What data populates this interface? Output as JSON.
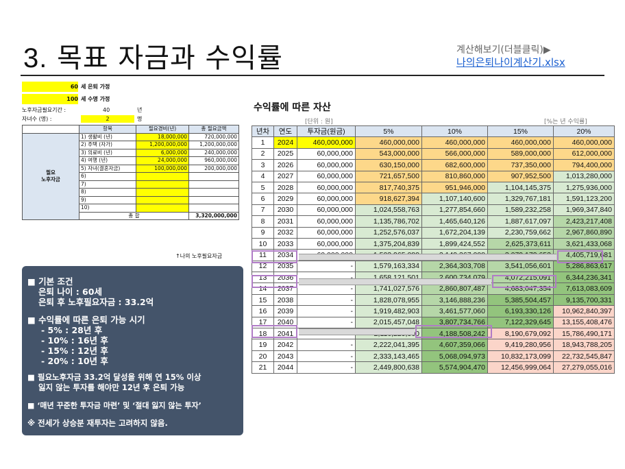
{
  "header": {
    "num": "3.",
    "title": "목표 자금과 수익률",
    "calc_label": "계산해보기(더블클릭)▶",
    "calc_link": "나의은퇴나이계산기.xlsx"
  },
  "assumptions": {
    "retire_age": "60",
    "retire_text": "세 은퇴 가정",
    "life_age": "100",
    "life_text": "세 수명 가정",
    "period_label": "노후자금필요기간 :",
    "period_val": "40",
    "period_unit": "년",
    "children_label": "자녀수 (명) :",
    "children_val": "2",
    "children_unit": "명"
  },
  "need_table": {
    "headers": [
      "항목",
      "필요경비(년)",
      "총 필요금액"
    ],
    "side_label": [
      "필요",
      "노후자금"
    ],
    "rows": [
      [
        "1) 생활비 (년)",
        "18,000,000",
        "720,000,000"
      ],
      [
        "2) 주택 (자가)",
        "1,200,000,000",
        "1,200,000,000"
      ],
      [
        "3) 의료비 (년)",
        "6,000,000",
        "240,000,000"
      ],
      [
        "4) 여행 (년)",
        "24,000,000",
        "960,000,000"
      ],
      [
        "5) 자녀(결혼자금)",
        "100,000,000",
        "200,000,000"
      ],
      [
        "6)",
        "",
        ""
      ],
      [
        "7)",
        "",
        ""
      ],
      [
        "8)",
        "",
        ""
      ],
      [
        "9)",
        "",
        ""
      ],
      [
        "10)",
        "",
        ""
      ]
    ],
    "total_label": "총 합",
    "total_val": "3,320,000,000",
    "footnote": "↑나의 노후필요자금"
  },
  "summary": {
    "lines": [
      "■ 기본 조건",
      "은퇴 나이 : 60세",
      "은퇴 후 노후필요자금 : 33.2억",
      "■ 수익률에 따른 은퇴 가능 시기",
      "-   5% : 28년 후",
      "- 10% : 16년 후",
      "- 15% : 12년 후",
      "- 20% : 10년 후",
      "■ 필요노후자금  33.2억 달성을 위해 연 15% 이상",
      "잃지 않는 투자를 해야만 12년 후 은퇴 가능",
      "■ ‘매년 꾸준한 투자금 마련’ 및 ‘절대 잃지 않는 투자’",
      "※ 전세가 상승분 재투자는 고려하지 않음."
    ]
  },
  "returns": {
    "title": "수익률에 따른 자산",
    "unit_left": "[단위 : 원]",
    "unit_right": "[%는 년 수익률]",
    "headers": [
      "년차",
      "연도",
      "투자금(원금)",
      "5%",
      "10%",
      "15%",
      "20%"
    ],
    "colors": {
      "orange": "#fdd88a",
      "light_green": "#d8ead2",
      "mid_green": "#b6d7a8",
      "green": "#93c47d",
      "peach": "#fbd5c9",
      "yellow": "#ffff00"
    },
    "rows": [
      [
        "1",
        "2024",
        "460,000,000",
        "460,000,000",
        "460,000,000",
        "460,000,000",
        "460,000,000"
      ],
      [
        "2",
        "2025",
        "60,000,000",
        "543,000,000",
        "566,000,000",
        "589,000,000",
        "612,000,000"
      ],
      [
        "3",
        "2026",
        "60,000,000",
        "630,150,000",
        "682,600,000",
        "737,350,000",
        "794,400,000"
      ],
      [
        "4",
        "2027",
        "60,000,000",
        "721,657,500",
        "810,860,000",
        "907,952,500",
        "1,013,280,000"
      ],
      [
        "5",
        "2028",
        "60,000,000",
        "817,740,375",
        "951,946,000",
        "1,104,145,375",
        "1,275,936,000"
      ],
      [
        "6",
        "2029",
        "60,000,000",
        "918,627,394",
        "1,107,140,600",
        "1,329,767,181",
        "1,591,123,200"
      ],
      [
        "7",
        "2030",
        "60,000,000",
        "1,024,558,763",
        "1,277,854,660",
        "1,589,232,258",
        "1,969,347,840"
      ],
      [
        "8",
        "2031",
        "60,000,000",
        "1,135,786,702",
        "1,465,640,126",
        "1,887,617,097",
        "2,423,217,408"
      ],
      [
        "9",
        "2032",
        "60,000,000",
        "1,252,576,037",
        "1,672,204,139",
        "2,230,759,662",
        "2,967,860,890"
      ],
      [
        "10",
        "2033",
        "60,000,000",
        "1,375,204,839",
        "1,899,424,552",
        "2,625,373,611",
        "3,621,433,068"
      ],
      [
        "11",
        "2034",
        "60,000,000",
        "1,503,965,080",
        "2,149,367,008",
        "3,079,179,653",
        "4,405,719,681"
      ],
      [
        "12",
        "2035",
        "-",
        "1,579,163,334",
        "2,364,303,708",
        "3,541,056,601",
        "5,286,863,617"
      ],
      [
        "13",
        "2036",
        "-",
        "1,658,121,501",
        "2,600,734,079",
        "4,072,215,091",
        "6,344,236,341"
      ],
      [
        "14",
        "2037",
        "-",
        "1,741,027,576",
        "2,860,807,487",
        "4,683,047,354",
        "7,613,083,609"
      ],
      [
        "15",
        "2038",
        "-",
        "1,828,078,955",
        "3,146,888,236",
        "5,385,504,457",
        "9,135,700,331"
      ],
      [
        "16",
        "2039",
        "-",
        "1,919,482,903",
        "3,461,577,060",
        "6,193,330,126",
        "10,962,840,397"
      ],
      [
        "17",
        "2040",
        "-",
        "2,015,457,048",
        "3,807,734,766",
        "7,122,329,645",
        "13,155,408,476"
      ],
      [
        "18",
        "2041",
        "-",
        "2,116,229,900",
        "4,188,508,242",
        "8,190,679,092",
        "15,786,490,171"
      ],
      [
        "19",
        "2042",
        "-",
        "2,222,041,395",
        "4,607,359,066",
        "9,419,280,956",
        "18,943,788,205"
      ],
      [
        "20",
        "2043",
        "-",
        "2,333,143,465",
        "5,068,094,973",
        "10,832,173,099",
        "22,732,545,847"
      ],
      [
        "21",
        "2044",
        "-",
        "2,449,800,638",
        "5,574,904,470",
        "12,456,999,064",
        "27,279,055,016"
      ]
    ]
  }
}
